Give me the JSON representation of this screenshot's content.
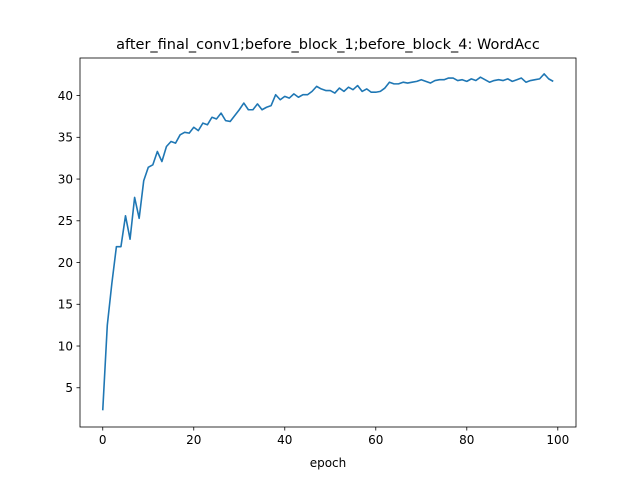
{
  "chart_data": {
    "type": "line",
    "title": "after_final_conv1;before_block_1;before_block_4: WordAcc",
    "xlabel": "epoch",
    "ylabel": "",
    "xlim": [
      -5,
      104
    ],
    "ylim": [
      0.3,
      44.5
    ],
    "xticks": [
      0,
      20,
      40,
      60,
      80,
      100
    ],
    "yticks": [
      5,
      10,
      15,
      20,
      25,
      30,
      35,
      40
    ],
    "grid": false,
    "legend": "none",
    "series": [
      {
        "color": "#1f77b4",
        "x": [
          0,
          1,
          2,
          3,
          4,
          5,
          6,
          7,
          8,
          9,
          10,
          11,
          12,
          13,
          14,
          15,
          16,
          17,
          18,
          19,
          20,
          21,
          22,
          23,
          24,
          25,
          26,
          27,
          28,
          29,
          30,
          31,
          32,
          33,
          34,
          35,
          36,
          37,
          38,
          39,
          40,
          41,
          42,
          43,
          44,
          45,
          46,
          47,
          48,
          49,
          50,
          51,
          52,
          53,
          54,
          55,
          56,
          57,
          58,
          59,
          60,
          61,
          62,
          63,
          64,
          65,
          66,
          67,
          68,
          69,
          70,
          71,
          72,
          73,
          74,
          75,
          76,
          77,
          78,
          79,
          80,
          81,
          82,
          83,
          84,
          85,
          86,
          87,
          88,
          89,
          90,
          91,
          92,
          93,
          94,
          95,
          96,
          97,
          98,
          99
        ],
        "values": [
          2.3,
          12.5,
          17.5,
          21.9,
          21.9,
          25.6,
          22.8,
          27.8,
          25.3,
          29.8,
          31.4,
          31.7,
          33.3,
          32.1,
          33.9,
          34.5,
          34.3,
          35.3,
          35.6,
          35.5,
          36.2,
          35.8,
          36.7,
          36.5,
          37.4,
          37.2,
          37.9,
          37.0,
          36.9,
          37.6,
          38.3,
          39.1,
          38.3,
          38.3,
          39.0,
          38.3,
          38.6,
          38.8,
          40.1,
          39.5,
          39.9,
          39.7,
          40.2,
          39.8,
          40.1,
          40.1,
          40.5,
          41.1,
          40.8,
          40.6,
          40.6,
          40.3,
          40.9,
          40.5,
          41.0,
          40.7,
          41.2,
          40.5,
          40.8,
          40.4,
          40.4,
          40.5,
          40.9,
          41.6,
          41.4,
          41.4,
          41.6,
          41.5,
          41.6,
          41.7,
          41.9,
          41.7,
          41.5,
          41.8,
          41.9,
          41.9,
          42.1,
          42.1,
          41.8,
          41.9,
          41.7,
          42.0,
          41.8,
          42.2,
          41.9,
          41.6,
          41.8,
          41.9,
          41.8,
          42.0,
          41.7,
          41.9,
          42.1,
          41.6,
          41.8,
          41.9,
          42.0,
          42.6,
          42.0,
          41.7
        ]
      }
    ]
  }
}
